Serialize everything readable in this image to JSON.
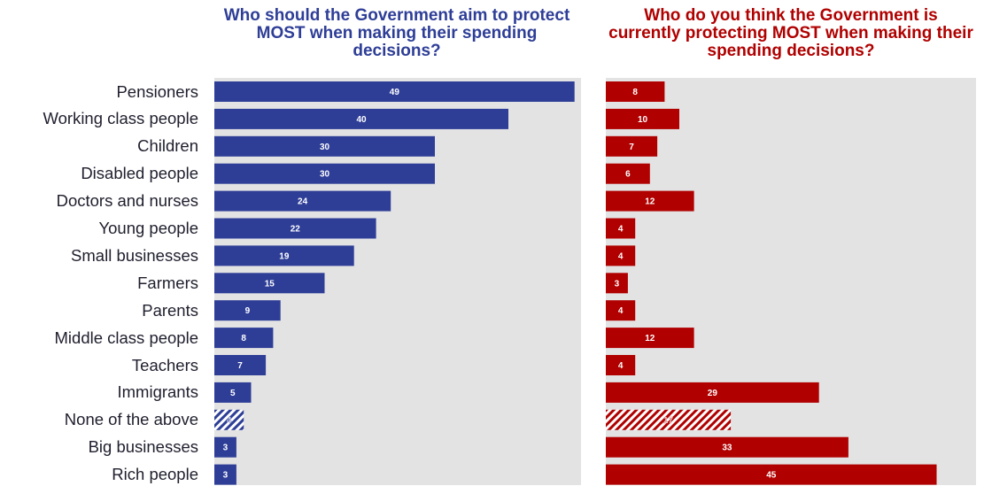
{
  "chart_data": [
    {
      "type": "bar",
      "orientation": "horizontal",
      "title": "Who should the Government aim to protect MOST when making their spending decisions?",
      "categories": [
        "Pensioners",
        "Working class people",
        "Children",
        "Disabled people",
        "Doctors and nurses",
        "Young people",
        "Small businesses",
        "Farmers",
        "Parents",
        "Middle class people",
        "Teachers",
        "Immigrants",
        "None of the above",
        "Big businesses",
        "Rich people"
      ],
      "values": [
        49,
        40,
        30,
        30,
        24,
        22,
        19,
        15,
        9,
        8,
        7,
        5,
        4,
        3,
        3
      ],
      "xlim": [
        0,
        50
      ],
      "color": "#2e3e97",
      "hatched_category": "None of the above"
    },
    {
      "type": "bar",
      "orientation": "horizontal",
      "title": "Who do you think the Government is currently protecting MOST when making their spending decisions?",
      "categories": [
        "Pensioners",
        "Working class people",
        "Children",
        "Disabled people",
        "Doctors and nurses",
        "Young people",
        "Small businesses",
        "Farmers",
        "Parents",
        "Middle class people",
        "Teachers",
        "Immigrants",
        "None of the above",
        "Big businesses",
        "Rich people"
      ],
      "values": [
        8,
        10,
        7,
        6,
        12,
        4,
        4,
        3,
        4,
        12,
        4,
        29,
        17,
        33,
        45
      ],
      "xlim": [
        0,
        50
      ],
      "color": "#b00000",
      "hatched_category": "None of the above"
    }
  ],
  "colors": {
    "left_title": "#2e3e97",
    "right_title": "#b00000",
    "panel_background": "#e3e3e3"
  }
}
